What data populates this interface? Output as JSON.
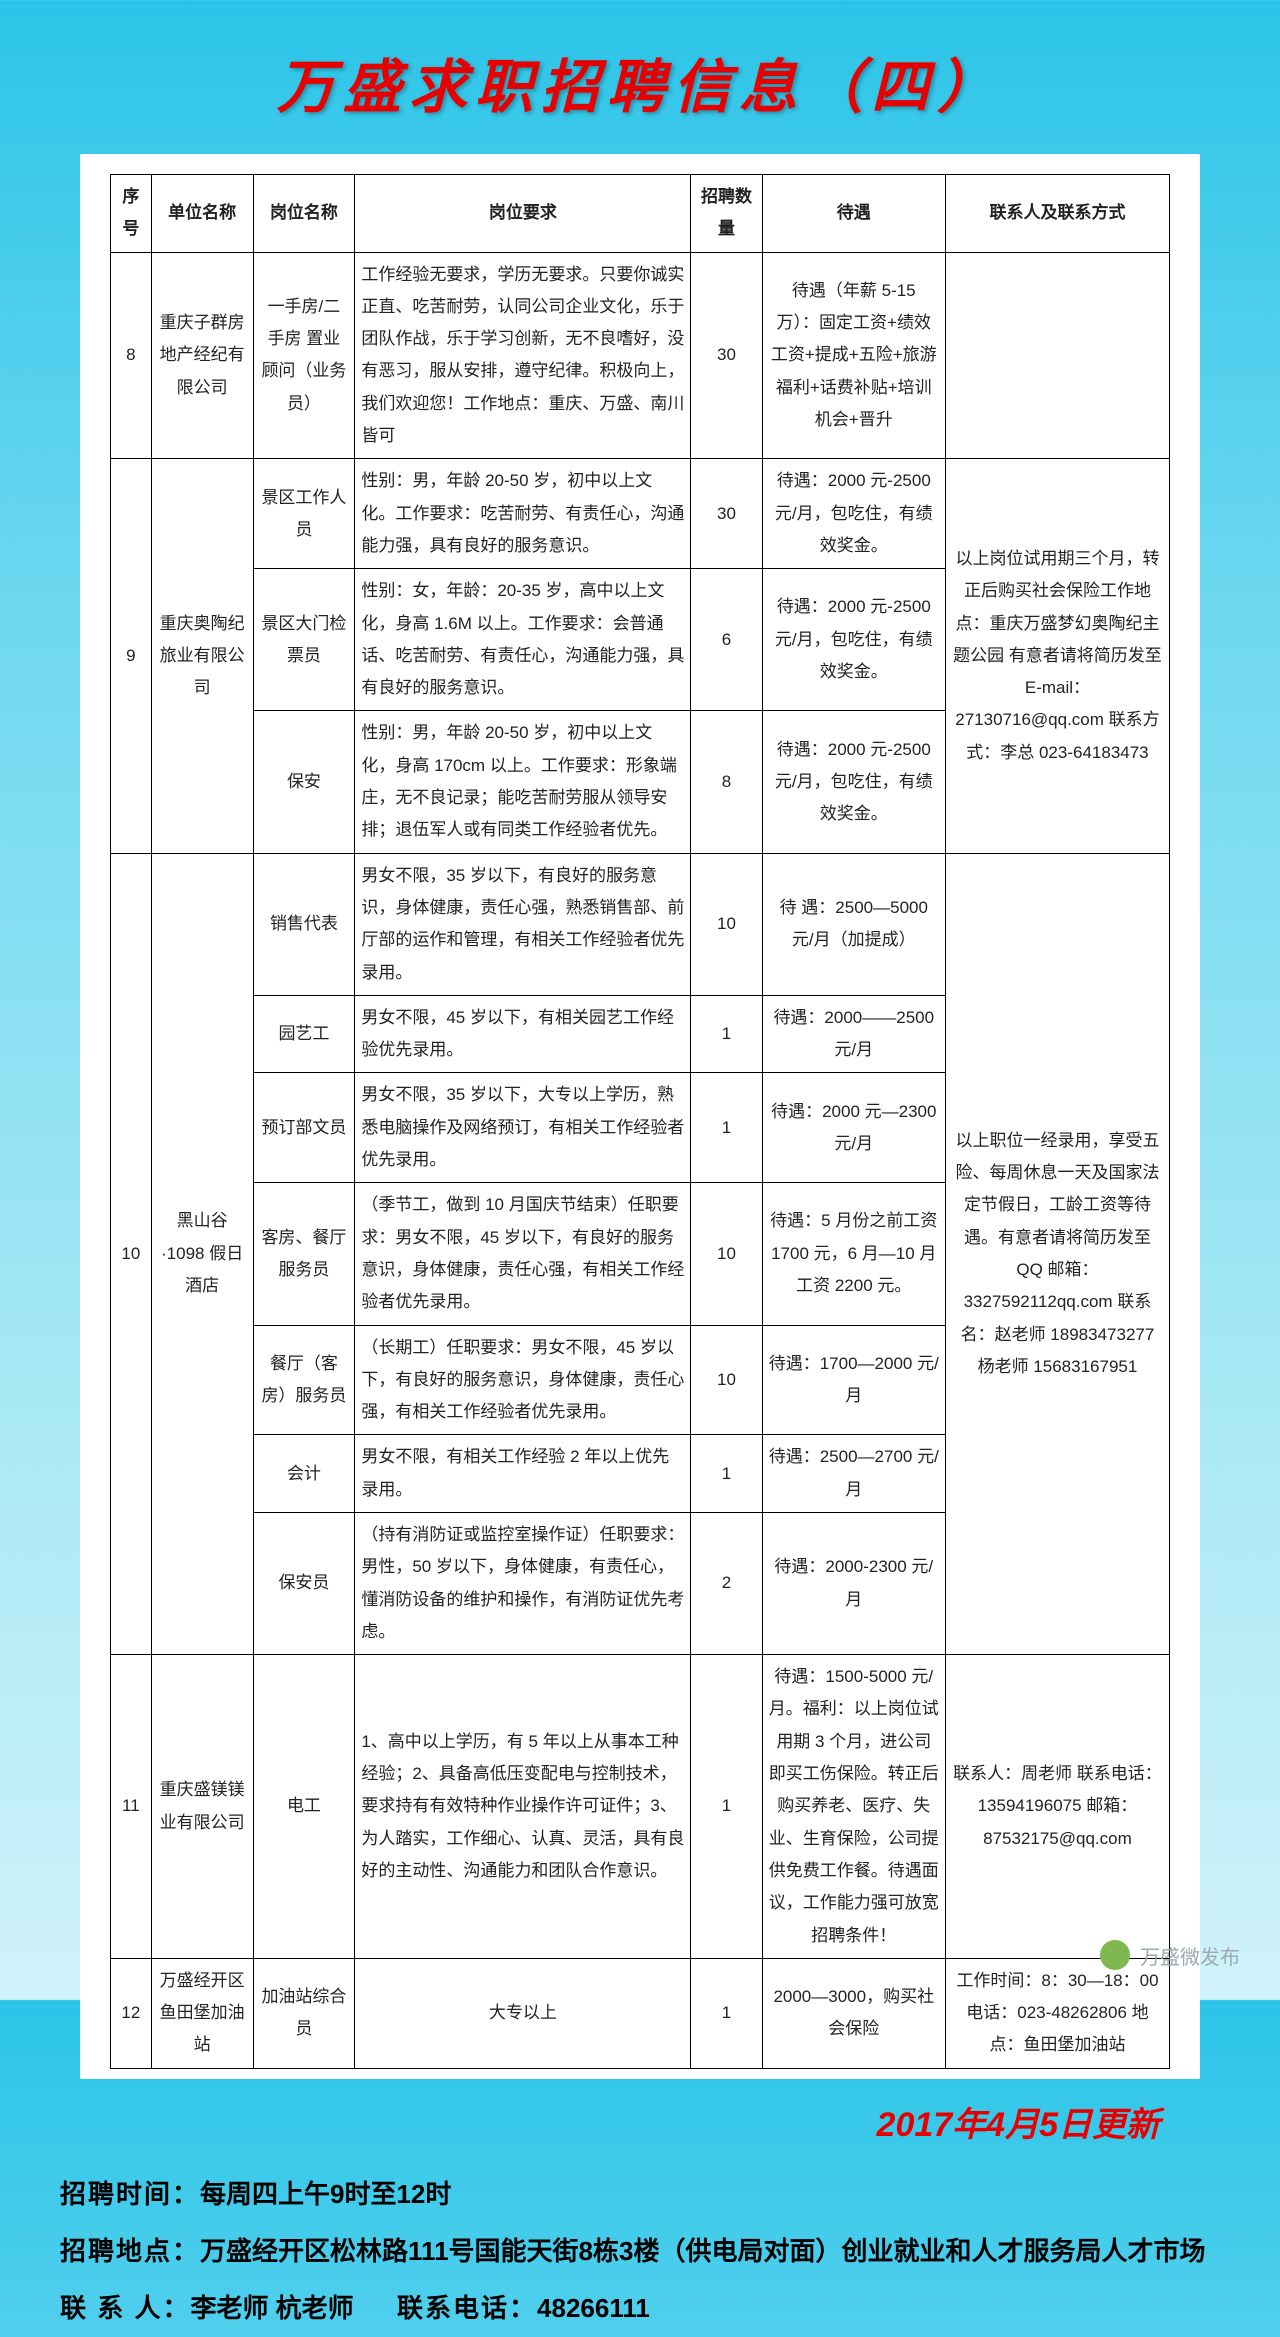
{
  "title": "万盛求职招聘信息（四）",
  "headers": {
    "seq": "序号",
    "company": "单位名称",
    "position": "岗位名称",
    "requirement": "岗位要求",
    "count": "招聘数量",
    "pay": "待遇",
    "contact": "联系人及联系方式"
  },
  "rows": [
    {
      "seq": "8",
      "company": "重庆子群房地产经纪有限公司",
      "position": "一手房/二手房 置业顾问（业务员）",
      "requirement": "工作经验无要求，学历无要求。只要你诚实正直、吃苦耐劳，认同公司企业文化，乐于团队作战，乐于学习创新，无不良嗜好，没有恶习，服从安排，遵守纪律。积极向上，我们欢迎您！工作地点：重庆、万盛、南川皆可",
      "count": "30",
      "pay": "待遇（年薪 5-15 万）：固定工资+绩效工资+提成+五险+旅游福利+话费补贴+培训机会+晋升",
      "contact": ""
    },
    {
      "seq": "9",
      "company": "重庆奥陶纪旅业有限公司",
      "sub": [
        {
          "position": "景区工作人员",
          "requirement": "性别：男，年龄 20-50 岁，初中以上文化。工作要求：吃苦耐劳、有责任心，沟通能力强，具有良好的服务意识。",
          "count": "30",
          "pay": "待遇：2000 元-2500 元/月，包吃住，有绩效奖金。"
        },
        {
          "position": "景区大门检票员",
          "requirement": "性别：女，年龄：20-35 岁，高中以上文化，身高 1.6M 以上。工作要求：会普通话、吃苦耐劳、有责任心，沟通能力强，具有良好的服务意识。",
          "count": "6",
          "pay": "待遇：2000 元-2500 元/月，包吃住，有绩效奖金。"
        },
        {
          "position": "保安",
          "requirement": "性别：男，年龄 20-50 岁，初中以上文化，身高 170cm 以上。工作要求：形象端庄，无不良记录；能吃苦耐劳服从领导安排；退伍军人或有同类工作经验者优先。",
          "count": "8",
          "pay": "待遇：2000 元-2500 元/月，包吃住，有绩效奖金。"
        }
      ],
      "contact": "以上岗位试用期三个月，转正后购买社会保险工作地点：重庆万盛梦幻奥陶纪主题公园 有意者请将简历发至E-mail：27130716@qq.com 联系方式：李总 023-64183473"
    },
    {
      "seq": "10",
      "company": "黑山谷·1098 假日酒店",
      "sub": [
        {
          "position": "销售代表",
          "requirement": "男女不限，35 岁以下，有良好的服务意识，身体健康，责任心强，熟悉销售部、前厅部的运作和管理，有相关工作经验者优先录用。",
          "count": "10",
          "pay": "待 遇：2500—5000 元/月（加提成）"
        },
        {
          "position": "园艺工",
          "requirement": "男女不限，45 岁以下，有相关园艺工作经验优先录用。",
          "count": "1",
          "pay": "待遇：2000——2500 元/月"
        },
        {
          "position": "预订部文员",
          "requirement": "男女不限，35 岁以下，大专以上学历，熟悉电脑操作及网络预订，有相关工作经验者优先录用。",
          "count": "1",
          "pay": "待遇：2000 元—2300 元/月"
        },
        {
          "position": "客房、餐厅服务员",
          "requirement": "（季节工，做到 10 月国庆节结束）任职要求：男女不限，45 岁以下，有良好的服务意识，身体健康，责任心强，有相关工作经验者优先录用。",
          "count": "10",
          "pay": "待遇：5 月份之前工资 1700 元，6 月—10 月工资 2200 元。"
        },
        {
          "position": "餐厅（客房）服务员",
          "requirement": "（长期工）任职要求：男女不限，45 岁以下，有良好的服务意识，身体健康，责任心强，有相关工作经验者优先录用。",
          "count": "10",
          "pay": "待遇：1700—2000 元/月"
        },
        {
          "position": "会计",
          "requirement": "男女不限，有相关工作经验 2 年以上优先录用。",
          "count": "1",
          "pay": "待遇：2500—2700 元/月"
        },
        {
          "position": "保安员",
          "requirement": "（持有消防证或监控室操作证）任职要求：男性，50 岁以下，身体健康，有责任心，懂消防设备的维护和操作，有消防证优先考虑。",
          "count": "2",
          "pay": "待遇：2000-2300 元/月"
        }
      ],
      "contact": "以上职位一经录用，享受五险、每周休息一天及国家法定节假日，工龄工资等待遇。有意者请将简历发至 QQ 邮箱：3327592112qq.com 联系名：赵老师 18983473277 杨老师 15683167951"
    },
    {
      "seq": "11",
      "company": "重庆盛镁镁业有限公司",
      "position": "电工",
      "requirement": "1、高中以上学历，有 5 年以上从事本工种经验；2、具备高低压变配电与控制技术，要求持有有效特种作业操作许可证件；3、为人踏实，工作细心、认真、灵活，具有良好的主动性、沟通能力和团队合作意识。",
      "count": "1",
      "pay": "待遇：1500-5000 元/月。福利：以上岗位试用期 3 个月，进公司即买工伤保险。转正后购买养老、医疗、失业、生育保险，公司提供免费工作餐。待遇面议，工作能力强可放宽招聘条件！",
      "contact": "联系人：周老师 联系电话：13594196075 邮箱：87532175@qq.com"
    },
    {
      "seq": "12",
      "company": "万盛经开区鱼田堡加油站",
      "position": "加油站综合员",
      "requirement": "大专以上",
      "count": "1",
      "pay": "2000—3000，购买社会保险",
      "contact": "工作时间：8：30—18：00 电话：023-48262806 地点：鱼田堡加油站"
    }
  ],
  "updateDate": "2017年4月5日更新",
  "footer": {
    "time_label": "招聘时间：",
    "time": "每周四上午9时至12时",
    "addr_label": "招聘地点：",
    "addr": "万盛经开区松林路111号国能天街8栋3楼（供电局对面）创业就业和人才服务局人才市场",
    "person_label": "联 系 人：",
    "person": "李老师 杭老师",
    "phone_label": "联系电话：",
    "phone": "48266111"
  },
  "source": "万盛微发布"
}
